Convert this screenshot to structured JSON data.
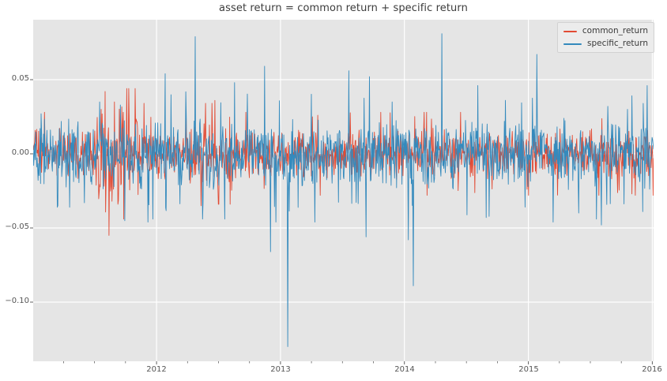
{
  "chart_data": {
    "type": "line",
    "title": "asset return = common return + specific return",
    "xlabel": "",
    "ylabel": "",
    "x_range": [
      2011.005,
      2016.01
    ],
    "y_range": [
      -0.1399,
      0.0904
    ],
    "x_ticks": [
      {
        "value": 2012,
        "label": "2012"
      },
      {
        "value": 2013,
        "label": "2013"
      },
      {
        "value": 2014,
        "label": "2014"
      },
      {
        "value": 2015,
        "label": "2015"
      },
      {
        "value": 2016,
        "label": "2016"
      }
    ],
    "y_ticks": [
      {
        "value": 0.05,
        "label": "0.05"
      },
      {
        "value": 0.0,
        "label": "0.00"
      },
      {
        "value": -0.05,
        "label": "−0.05"
      },
      {
        "value": -0.1,
        "label": "−0.10"
      }
    ],
    "x_minor_tick_interval": 0.25,
    "grid": true,
    "legend_position": "upper right",
    "points_per_year": 252,
    "noise_seed": 20160101,
    "style": {
      "figure_bg": "#ffffff",
      "axes_bg": "#e5e5e5",
      "grid_color": "#ffffff",
      "tick_color": "#606060",
      "tick_label_color": "#555555",
      "title_color": "#3c3c3c"
    },
    "series": [
      {
        "name": "common_return",
        "color": "#E24A33",
        "base_std": 0.0082,
        "clamp": 0.028,
        "volatility_windows": [
          {
            "from": 2011.5,
            "to": 2011.85,
            "std": 0.019,
            "clamp": 0.044
          },
          {
            "from": 2012.25,
            "to": 2012.65,
            "std": 0.012,
            "clamp": 0.034
          }
        ],
        "spikes": [
          [
            2011.555,
            0.03
          ],
          [
            2011.585,
            0.042
          ],
          [
            2011.615,
            -0.055
          ],
          [
            2011.64,
            -0.032
          ],
          [
            2011.66,
            0.035
          ],
          [
            2011.69,
            -0.034
          ],
          [
            2011.73,
            0.028
          ],
          [
            2011.9,
            0.034
          ],
          [
            2012.36,
            -0.035
          ],
          [
            2012.47,
            0.036
          ]
        ]
      },
      {
        "name": "specific_return",
        "color": "#348ABD",
        "base_std": 0.0115,
        "clamp": 0.046,
        "volatility_windows": [],
        "spikes": [
          [
            2011.07,
            0.027
          ],
          [
            2011.2,
            -0.036
          ],
          [
            2011.3,
            -0.036
          ],
          [
            2011.42,
            -0.033
          ],
          [
            2011.54,
            0.035
          ],
          [
            2011.97,
            -0.044
          ],
          [
            2012.07,
            0.054
          ],
          [
            2012.31,
            0.079
          ],
          [
            2012.37,
            -0.044
          ],
          [
            2012.55,
            -0.044
          ],
          [
            2012.63,
            0.048
          ],
          [
            2012.87,
            0.059
          ],
          [
            2012.92,
            -0.066
          ],
          [
            2013.06,
            -0.13
          ],
          [
            2013.55,
            0.056
          ],
          [
            2013.69,
            -0.056
          ],
          [
            2013.72,
            0.052
          ],
          [
            2013.9,
            0.035
          ],
          [
            2014.03,
            -0.058
          ],
          [
            2014.07,
            -0.089
          ],
          [
            2014.3,
            0.081
          ],
          [
            2014.66,
            -0.043
          ],
          [
            2015.07,
            0.067
          ],
          [
            2015.55,
            -0.044
          ],
          [
            2015.59,
            -0.048
          ],
          [
            2015.64,
            0.032
          ],
          [
            2015.8,
            0.03
          ]
        ]
      }
    ]
  }
}
